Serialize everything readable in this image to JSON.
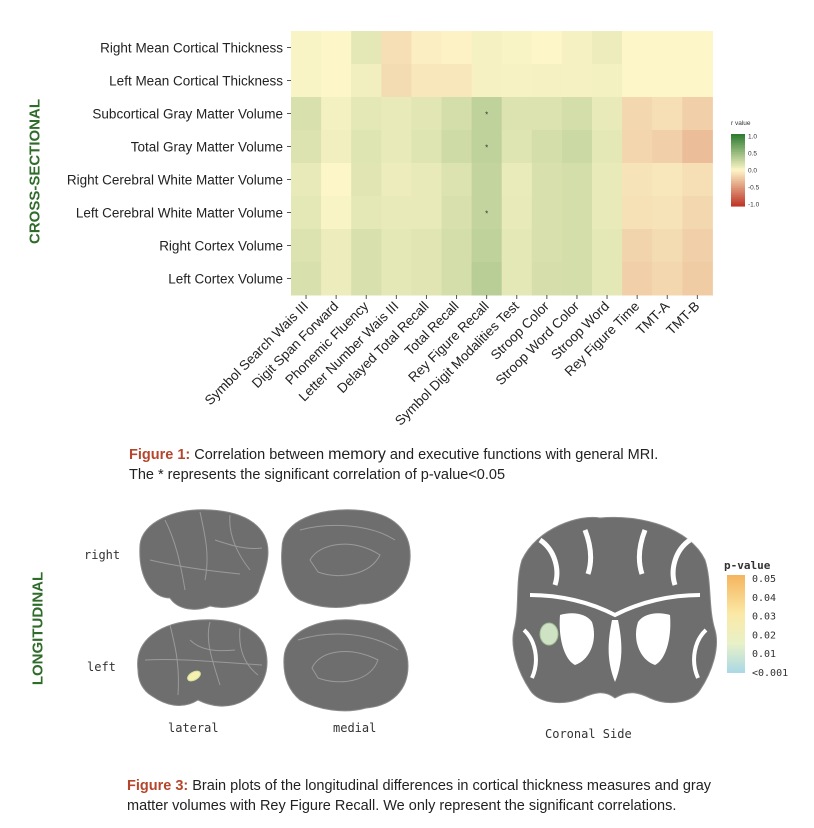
{
  "sections": {
    "cross_sectional_label": "CROSS-SECTIONAL",
    "longitudinal_label": "LONGITUDINAL"
  },
  "figure1": {
    "caption_fig": "Figure 1:",
    "caption_a": " Correlation between ",
    "caption_memory": "memory",
    "caption_b": " and executive functions with general MRI.",
    "caption_line2": "The * represents the significant correlation of p-value<0.05"
  },
  "figure3": {
    "caption_fig": "Figure 3:",
    "caption_line1": "  Brain plots of the longitudinal differences in cortical thickness measures and gray",
    "caption_line2": "matter volumes with Rey Figure Recall. We only represent the significant correlations."
  },
  "brain_labels": {
    "right": "right",
    "left": "left",
    "lateral": "lateral",
    "medial": "medial",
    "coronal": "Coronal Side"
  },
  "colors": {
    "green_strong": "#2e7d32",
    "yellow_mid": "#fdf6c8",
    "red_strong": "#c0392b",
    "section_green": "#2f6b2a",
    "caption_red": "#b5452c",
    "brain_gray": "#6e6e6e",
    "highlight_green": "#cfe3c4"
  },
  "chart_data": [
    {
      "type": "heatmap",
      "rows": [
        "Right Mean Cortical Thickness",
        "Left Mean Cortical Thickness",
        "Subcortical Gray Matter Volume",
        "Total Gray Matter Volume",
        "Right Cerebral White Matter Volume",
        "Left Cerebral White Matter Volume",
        "Right Cortex Volume",
        "Left Cortex Volume"
      ],
      "columns": [
        "Symbol Search Wais III",
        "Digit Span Forward",
        "Phonemic Fluency",
        "Letter Number Wais III",
        "Delayed Total Recall",
        "Total Recall",
        "Rey Figure Recall",
        "Symbol Digit Modalities Test",
        "Stroop Color",
        "Stroop Word Color",
        "Stroop Word",
        "Rey Figure Time",
        "TMT-A",
        "TMT-B"
      ],
      "values": [
        [
          0.02,
          0.0,
          0.12,
          -0.12,
          -0.04,
          -0.02,
          0.04,
          0.02,
          0.0,
          0.04,
          0.08,
          0.0,
          0.0,
          0.0
        ],
        [
          0.02,
          0.0,
          0.06,
          -0.14,
          -0.08,
          -0.08,
          0.04,
          0.03,
          0.04,
          0.04,
          0.05,
          0.0,
          0.0,
          0.0
        ],
        [
          0.18,
          0.05,
          0.12,
          0.1,
          0.13,
          0.2,
          0.3,
          0.16,
          0.16,
          0.2,
          0.1,
          -0.16,
          -0.12,
          -0.2
        ],
        [
          0.16,
          0.06,
          0.15,
          0.1,
          0.15,
          0.22,
          0.3,
          0.15,
          0.2,
          0.24,
          0.12,
          -0.17,
          -0.2,
          -0.3
        ],
        [
          0.1,
          0.0,
          0.14,
          0.08,
          0.1,
          0.16,
          0.28,
          0.09,
          0.18,
          0.2,
          0.1,
          -0.1,
          -0.08,
          -0.12
        ],
        [
          0.12,
          0.02,
          0.12,
          0.1,
          0.1,
          0.18,
          0.28,
          0.1,
          0.18,
          0.2,
          0.1,
          -0.11,
          -0.1,
          -0.16
        ],
        [
          0.16,
          0.08,
          0.18,
          0.12,
          0.14,
          0.2,
          0.3,
          0.12,
          0.18,
          0.2,
          0.12,
          -0.18,
          -0.14,
          -0.2
        ],
        [
          0.18,
          0.08,
          0.18,
          0.12,
          0.14,
          0.2,
          0.33,
          0.12,
          0.19,
          0.2,
          0.12,
          -0.2,
          -0.16,
          -0.22
        ]
      ],
      "significant": [
        [
          2,
          6
        ],
        [
          3,
          6
        ],
        [
          5,
          6
        ]
      ],
      "significance_marker": "*",
      "legend": {
        "title": "r value",
        "ticks": [
          "1.0",
          "0.5",
          "0.0",
          "-0.5",
          "-1.0"
        ],
        "range": [
          -1.0,
          1.0
        ],
        "placement": "right"
      }
    },
    {
      "type": "colorbar",
      "title": "p-value",
      "ticks": [
        "0.05",
        "0.04",
        "0.03",
        "0.02",
        "0.01",
        "<0.001"
      ],
      "range": [
        0.001,
        0.05
      ]
    }
  ]
}
